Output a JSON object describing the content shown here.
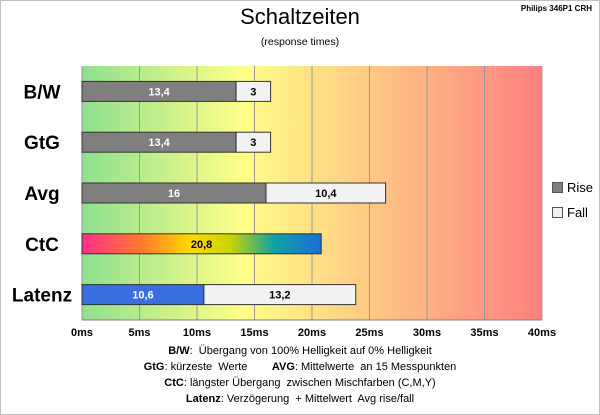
{
  "header": {
    "title": "Schaltzeiten",
    "subtitle": "(response times)",
    "model": "Philips 346P1 CRH"
  },
  "chart_data": {
    "type": "bar",
    "orientation": "horizontal",
    "stacked": true,
    "title": "Schaltzeiten",
    "subtitle": "(response times)",
    "categories": [
      "B/W",
      "GtG",
      "Avg",
      "CtC",
      "Latenz"
    ],
    "series": [
      {
        "name": "Rise",
        "values": [
          13.4,
          13.4,
          16,
          null,
          10.6
        ],
        "labels": [
          "13,4",
          "13,4",
          "16",
          "",
          "10,6"
        ]
      },
      {
        "name": "Fall",
        "values": [
          3,
          3,
          10.4,
          null,
          13.2
        ],
        "labels": [
          "3",
          "3",
          "10,4",
          "",
          "13,2"
        ]
      },
      {
        "name": "CtC",
        "values": [
          null,
          null,
          null,
          20.8,
          null
        ],
        "labels": [
          "",
          "",
          "",
          "20,8",
          ""
        ]
      }
    ],
    "xlim": [
      0,
      40
    ],
    "x_ticks": [
      0,
      5,
      10,
      15,
      20,
      25,
      30,
      35,
      40
    ],
    "x_tick_labels": [
      "0ms",
      "5ms",
      "10ms",
      "15ms",
      "20ms",
      "25ms",
      "30ms",
      "35ms",
      "40ms"
    ],
    "grid": true,
    "legend": "right",
    "colors": {
      "rise": "#7f7f7f",
      "fall": "#f2f2f2",
      "latenz_rise": "#3a6ee0",
      "bg_good": "#8fe08f",
      "bg_mid": "#ffff88",
      "bg_bad": "#ff7f7f"
    }
  },
  "legend": {
    "rise": "Rise",
    "fall": "Fall"
  },
  "notes": [
    {
      "key": "B/W",
      "text": ":  Übergang von 100% Helligkeit auf 0% Helligkeit"
    },
    {
      "key": "GtG",
      "text": ": kürzeste  Werte        ",
      "key2": "AVG",
      "text2": ": Mittelwerte  an 15 Messpunkten"
    },
    {
      "key": "CtC",
      "text": ": längster Übergang  zwischen Mischfarben (C,M,Y)"
    },
    {
      "key": "Latenz",
      "text": ": Verzögerung  + Mittelwert  Avg rise/fall"
    }
  ]
}
